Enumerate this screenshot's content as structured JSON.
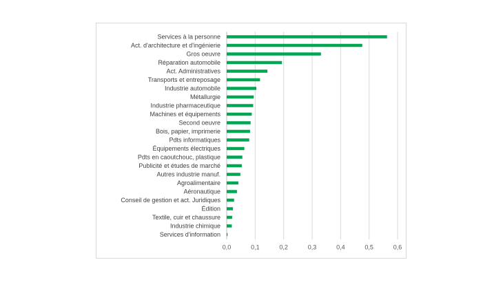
{
  "chart_data": {
    "type": "bar",
    "orientation": "horizontal",
    "title": "",
    "xlabel": "",
    "ylabel": "",
    "xlim": [
      0,
      0.6
    ],
    "xticks": [
      0,
      0.1,
      0.2,
      0.3,
      0.4,
      0.5,
      0.6
    ],
    "xtick_labels": [
      "0,0",
      "0,1",
      "0,2",
      "0,3",
      "0,4",
      "0,5",
      "0,6"
    ],
    "grid": "vertical",
    "legend": "none",
    "bar_color": "#00a651",
    "grid_color": "#d9d9d9",
    "categories": [
      "Services à la personne",
      "Act. d'architecture et d'ingénierie",
      "Gros oeuvre",
      "Réparation automobile",
      "Act. Administratives",
      "Transports et entreposage",
      "Industrie automobile",
      "Métallurgie",
      "Industrie pharmaceutique",
      "Machines et équipements",
      "Second oeuvre",
      "Bois, papier, imprimerie",
      "Pdts informatiques",
      "Équipements électriques",
      "Pdts en caoutchouc, plastique",
      "Publicité et études de marché",
      "Autres industrie manuf.",
      "Agroalimentaire",
      "Aéronautique",
      "Conseil de gestion et act. Juridiques",
      "Édition",
      "Textile, cuir et chaussure",
      "Industrie chimique",
      "Services d'information"
    ],
    "values": [
      0.563,
      0.476,
      0.331,
      0.194,
      0.143,
      0.117,
      0.104,
      0.095,
      0.093,
      0.088,
      0.084,
      0.082,
      0.079,
      0.062,
      0.055,
      0.053,
      0.048,
      0.041,
      0.036,
      0.026,
      0.022,
      0.019,
      0.018,
      0.003
    ]
  }
}
